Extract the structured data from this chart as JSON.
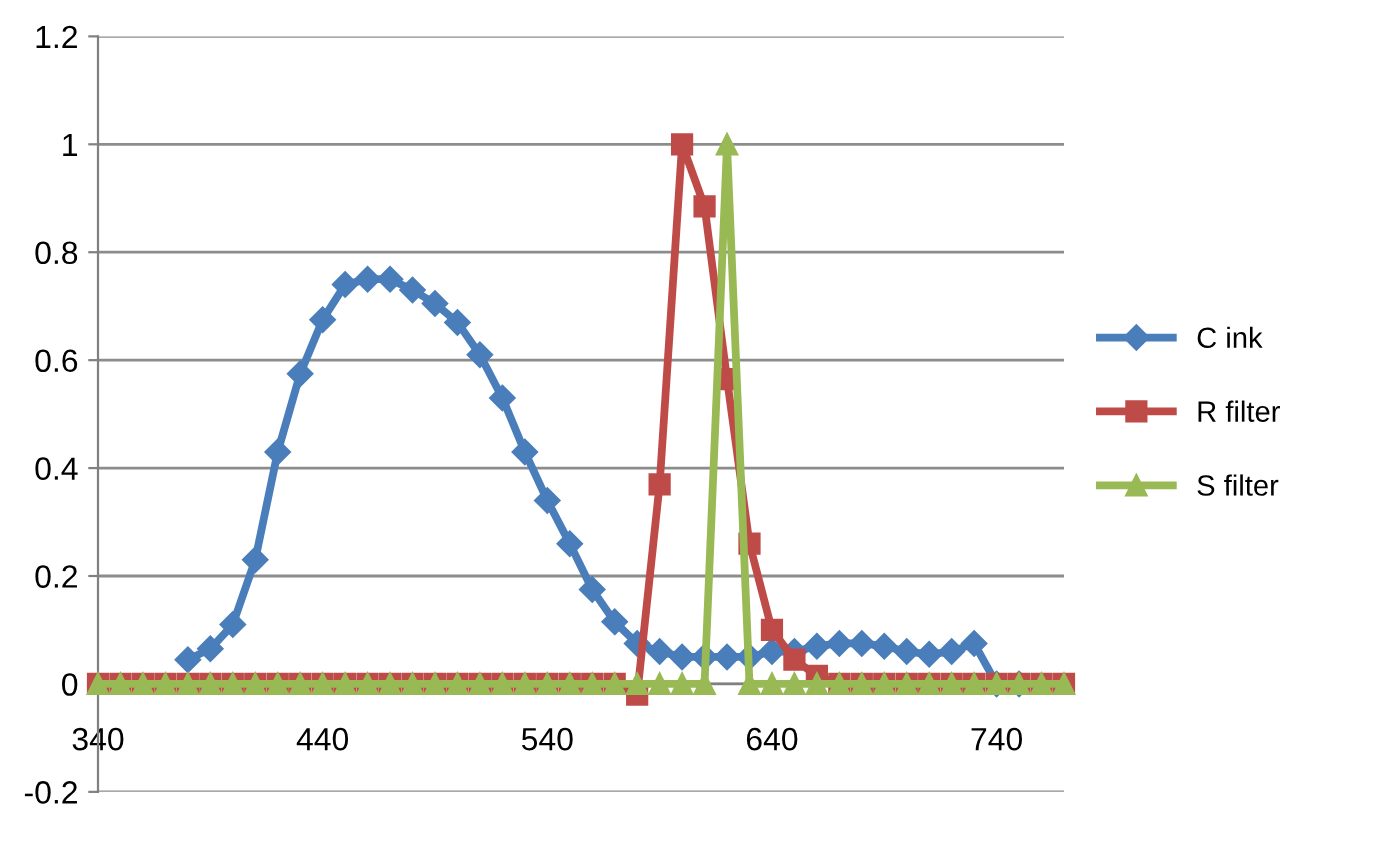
{
  "chart_data": {
    "type": "line",
    "x": [
      340,
      350,
      360,
      370,
      380,
      390,
      400,
      410,
      420,
      430,
      440,
      450,
      460,
      470,
      480,
      490,
      500,
      510,
      520,
      530,
      540,
      550,
      560,
      570,
      580,
      590,
      600,
      610,
      620,
      630,
      640,
      650,
      660,
      670,
      680,
      690,
      700,
      710,
      720,
      730,
      740,
      750,
      760,
      770
    ],
    "series": [
      {
        "name": "C ink",
        "color": "#4a7ebb",
        "marker": "diamond",
        "values": [
          null,
          null,
          null,
          null,
          0.045,
          0.065,
          0.11,
          0.23,
          0.43,
          0.575,
          0.675,
          0.74,
          0.75,
          0.75,
          0.73,
          0.705,
          0.67,
          0.61,
          0.53,
          0.43,
          0.34,
          0.26,
          0.175,
          0.115,
          0.075,
          0.06,
          0.05,
          0.05,
          0.05,
          0.05,
          0.06,
          0.06,
          0.07,
          0.075,
          0.075,
          0.07,
          0.06,
          0.055,
          0.06,
          0.075,
          0,
          0,
          null,
          null
        ]
      },
      {
        "name": "R filter",
        "color": "#be4b48",
        "marker": "square",
        "values": [
          0,
          0,
          0,
          0,
          0,
          0,
          0,
          0,
          0,
          0,
          0,
          0,
          0,
          0,
          0,
          0,
          0,
          0,
          0,
          0,
          0,
          0,
          0,
          0,
          -0.02,
          0.37,
          1.0,
          0.885,
          0.565,
          0.26,
          0.1,
          0.045,
          0.015,
          0,
          0,
          0,
          0,
          0,
          0,
          0,
          0,
          0,
          0,
          0
        ]
      },
      {
        "name": "S filter",
        "color": "#98b954",
        "marker": "triangle",
        "values": [
          0,
          0,
          0,
          0,
          0,
          0,
          0,
          0,
          0,
          0,
          0,
          0,
          0,
          0,
          0,
          0,
          0,
          0,
          0,
          0,
          0,
          0,
          0,
          0,
          0,
          0,
          0,
          0,
          1.0,
          0,
          0,
          0,
          0,
          0,
          0,
          0,
          0,
          0,
          0,
          0,
          0,
          0,
          0,
          0
        ]
      }
    ],
    "xlim": [
      340,
      770
    ],
    "xticks": [
      340,
      440,
      540,
      640,
      740
    ],
    "ylim": [
      -0.2,
      1.2
    ],
    "yticks": [
      -0.2,
      0,
      0.2,
      0.4,
      0.6,
      0.8,
      1,
      1.2
    ],
    "grid": "y",
    "legend": "right",
    "line_style": "solid"
  }
}
